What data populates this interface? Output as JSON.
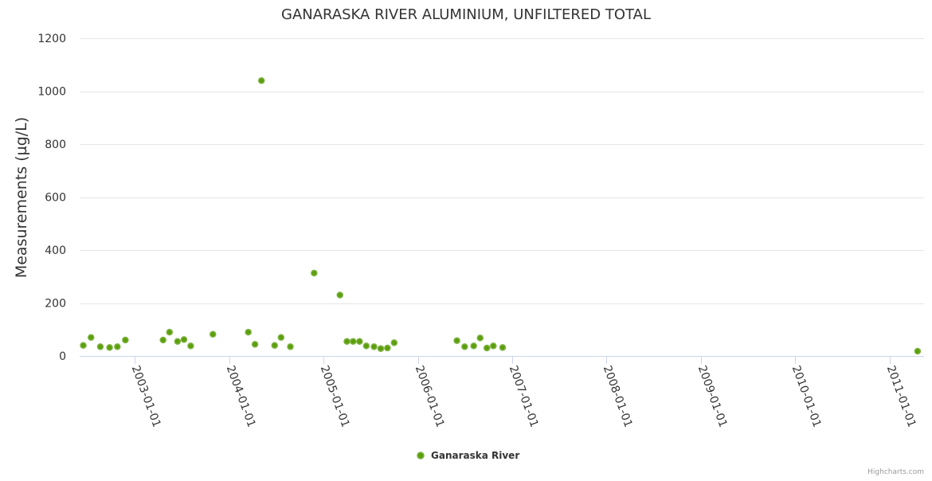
{
  "chart_data": {
    "type": "scatter",
    "title": "GANARASKA RIVER ALUMINIUM, UNFILTERED TOTAL",
    "xlabel": "",
    "ylabel": "Measurements (µg/L)",
    "ylim": [
      0,
      1200
    ],
    "yticks": [
      0,
      200,
      400,
      600,
      800,
      1000,
      1200
    ],
    "xlim": [
      "2002-06-01",
      "2011-05-15"
    ],
    "xticks": [
      "2003-01-01",
      "2004-01-01",
      "2005-01-01",
      "2006-01-01",
      "2007-01-01",
      "2008-01-01",
      "2009-01-01",
      "2010-01-01",
      "2011-01-01"
    ],
    "grid": true,
    "legend_position": "bottom-center",
    "series": [
      {
        "name": "Ganaraska River",
        "color": "#5c9e0b",
        "points": [
          {
            "x": "2002-06-15",
            "y": 40
          },
          {
            "x": "2002-07-15",
            "y": 70
          },
          {
            "x": "2002-08-20",
            "y": 35
          },
          {
            "x": "2002-09-25",
            "y": 32
          },
          {
            "x": "2002-10-25",
            "y": 35
          },
          {
            "x": "2002-11-25",
            "y": 60
          },
          {
            "x": "2003-04-20",
            "y": 60
          },
          {
            "x": "2003-05-15",
            "y": 90
          },
          {
            "x": "2003-06-15",
            "y": 55
          },
          {
            "x": "2003-07-10",
            "y": 62
          },
          {
            "x": "2003-08-05",
            "y": 38
          },
          {
            "x": "2003-10-30",
            "y": 82
          },
          {
            "x": "2004-03-15",
            "y": 90
          },
          {
            "x": "2004-04-10",
            "y": 44
          },
          {
            "x": "2004-05-05",
            "y": 1040
          },
          {
            "x": "2004-06-25",
            "y": 40
          },
          {
            "x": "2004-07-20",
            "y": 70
          },
          {
            "x": "2004-08-25",
            "y": 35
          },
          {
            "x": "2004-11-25",
            "y": 313
          },
          {
            "x": "2005-03-05",
            "y": 230
          },
          {
            "x": "2005-04-01",
            "y": 55
          },
          {
            "x": "2005-04-25",
            "y": 55
          },
          {
            "x": "2005-05-20",
            "y": 55
          },
          {
            "x": "2005-06-15",
            "y": 38
          },
          {
            "x": "2005-07-15",
            "y": 35
          },
          {
            "x": "2005-08-10",
            "y": 28
          },
          {
            "x": "2005-09-05",
            "y": 30
          },
          {
            "x": "2005-10-01",
            "y": 50
          },
          {
            "x": "2006-06-01",
            "y": 58
          },
          {
            "x": "2006-07-01",
            "y": 35
          },
          {
            "x": "2006-08-05",
            "y": 38
          },
          {
            "x": "2006-08-30",
            "y": 68
          },
          {
            "x": "2006-09-25",
            "y": 30
          },
          {
            "x": "2006-10-20",
            "y": 38
          },
          {
            "x": "2006-11-25",
            "y": 32
          },
          {
            "x": "2011-04-20",
            "y": 18
          }
        ]
      }
    ]
  },
  "credits": "Highcharts.com"
}
